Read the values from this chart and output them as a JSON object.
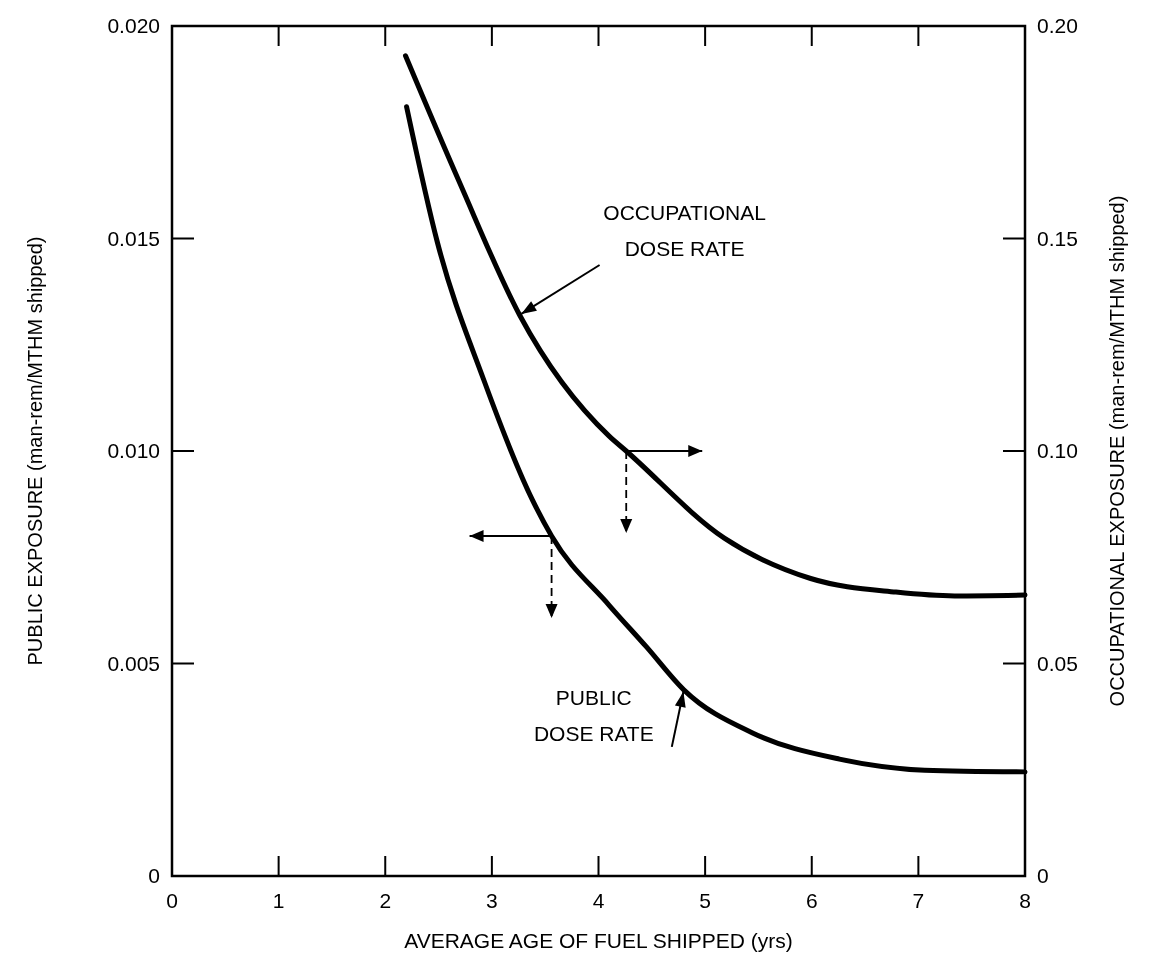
{
  "chart_data": {
    "type": "line",
    "xlabel": "AVERAGE AGE OF FUEL SHIPPED (yrs)",
    "ylabel": "PUBLIC EXPOSURE (man-rem/MTHM shipped)",
    "y2label": "OCCUPATIONAL EXPOSURE (man-rem/MTHM shipped)",
    "xlim": [
      0,
      8
    ],
    "xticks": [
      0,
      1,
      2,
      3,
      4,
      5,
      6,
      7,
      8
    ],
    "ylim": [
      0,
      0.02
    ],
    "yticks": [
      {
        "value": 0,
        "label": "0"
      },
      {
        "value": 0.005,
        "label": "0.005"
      },
      {
        "value": 0.01,
        "label": "0.010"
      },
      {
        "value": 0.015,
        "label": "0.015"
      },
      {
        "value": 0.02,
        "label": "0.020"
      }
    ],
    "y2lim": [
      0,
      0.2
    ],
    "y2ticks": [
      {
        "value": 0,
        "label": "0"
      },
      {
        "value": 0.05,
        "label": "0.05"
      },
      {
        "value": 0.1,
        "label": "0.10"
      },
      {
        "value": 0.15,
        "label": "0.15"
      },
      {
        "value": 0.2,
        "label": "0.20"
      }
    ],
    "grid": false,
    "marker": "none",
    "line_style": "solid",
    "series": [
      {
        "color": "#000000",
        "axis": "y2",
        "x": [
          2.19,
          2.7,
          3.26,
          4.1,
          4.26,
          5.18,
          5.99,
          6.79,
          7.34,
          8.0
        ],
        "values": [
          0.193,
          0.163,
          0.132,
          0.1035,
          0.1,
          0.0795,
          0.07,
          0.0668,
          0.0659,
          0.0661
        ]
      },
      {
        "color": "#000000",
        "x": [
          2.2,
          2.49,
          2.92,
          3.38,
          3.56,
          4.1,
          4.45,
          4.8,
          5.45,
          6.26,
          7.06,
          8.0
        ],
        "values": [
          0.0181,
          0.0149,
          0.0117,
          0.00885,
          0.008,
          0.00637,
          0.00539,
          0.00438,
          0.00336,
          0.00275,
          0.00249,
          0.00245
        ]
      }
    ],
    "annotations": [
      {
        "text": "OCCUPATIONAL\nDOSE RATE",
        "x": 3.26,
        "y": 0.0132
      },
      {
        "text": "PUBLIC\nDOSE RATE",
        "x": 4.8,
        "y": 0.00438
      }
    ]
  }
}
